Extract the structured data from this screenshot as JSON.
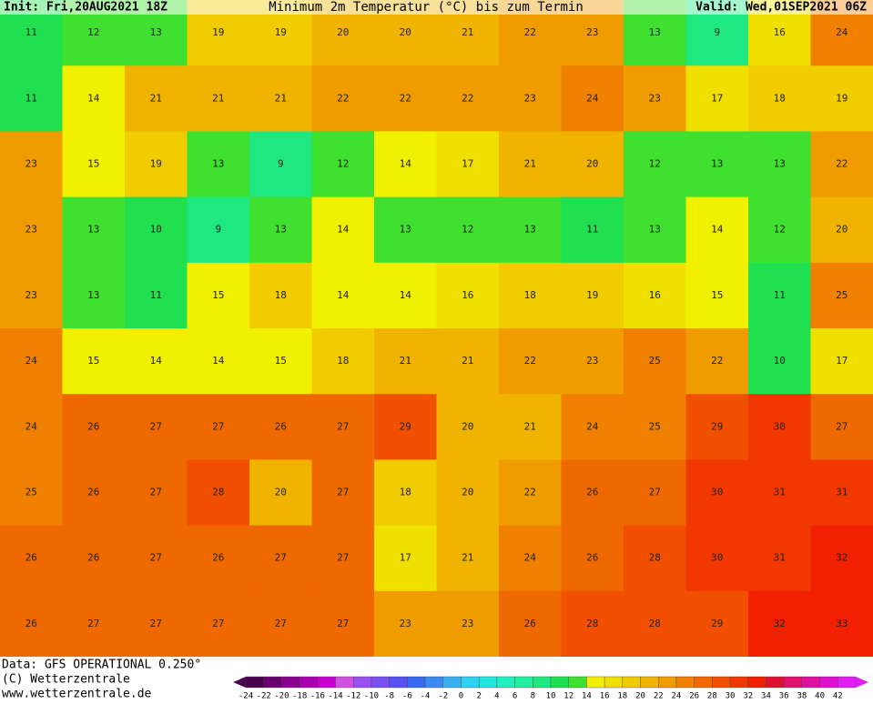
{
  "header": {
    "init": "Init: Fri,20AUG2021 18Z",
    "title": "Minimum 2m Temperatur (°C) bis zum Termin",
    "valid": "Valid: Wed,01SEP2021 06Z"
  },
  "footer": {
    "source": "Data: GFS OPERATIONAL 0.250°",
    "copyright": "(C) Wetterzentrale",
    "url": "www.wetterzentrale.de"
  },
  "map": {
    "grid": [
      [
        11,
        12,
        13,
        19,
        19,
        20,
        20,
        21,
        22,
        23,
        13,
        9,
        16,
        24
      ],
      [
        11,
        14,
        21,
        21,
        21,
        22,
        22,
        22,
        23,
        24,
        23,
        17,
        18,
        19
      ],
      [
        23,
        15,
        19,
        13,
        9,
        12,
        14,
        17,
        21,
        20,
        12,
        13,
        13,
        22
      ],
      [
        23,
        13,
        10,
        9,
        13,
        14,
        13,
        12,
        13,
        11,
        13,
        14,
        12,
        20
      ],
      [
        23,
        13,
        11,
        15,
        18,
        14,
        14,
        16,
        18,
        19,
        16,
        15,
        11,
        25
      ],
      [
        24,
        15,
        14,
        14,
        15,
        18,
        21,
        21,
        22,
        23,
        25,
        22,
        10,
        17
      ],
      [
        24,
        26,
        27,
        27,
        26,
        27,
        29,
        20,
        21,
        24,
        25,
        29,
        30,
        27
      ],
      [
        25,
        26,
        27,
        28,
        20,
        27,
        18,
        20,
        22,
        26,
        27,
        30,
        31,
        31
      ],
      [
        26,
        26,
        27,
        26,
        27,
        27,
        17,
        21,
        24,
        26,
        28,
        30,
        31,
        32
      ],
      [
        26,
        27,
        27,
        27,
        27,
        27,
        23,
        23,
        26,
        28,
        28,
        29,
        32,
        33
      ]
    ]
  },
  "legend": {
    "ticks": [
      -24,
      -22,
      -20,
      -18,
      -16,
      -14,
      -12,
      -10,
      -8,
      -6,
      -4,
      -2,
      0,
      2,
      4,
      6,
      8,
      10,
      12,
      14,
      16,
      18,
      20,
      22,
      24,
      26,
      28,
      30,
      32,
      34,
      36,
      38,
      40,
      42
    ],
    "colors": [
      "#4b0050",
      "#6a0070",
      "#8a008f",
      "#a800b0",
      "#c800d0",
      "#d24fe0",
      "#9a4ff0",
      "#7a50f0",
      "#5a50f0",
      "#3a6af0",
      "#3a8cf0",
      "#3ab0f0",
      "#30d0f0",
      "#20e8e0",
      "#20f0c0",
      "#20f0a0",
      "#20e880",
      "#20e050",
      "#40e030",
      "#f0f000",
      "#f0e000",
      "#f0cc00",
      "#f0b400",
      "#f09c00",
      "#f08000",
      "#f06800",
      "#f05000",
      "#f03800",
      "#f02000",
      "#e01030",
      "#e01070",
      "#e010a0",
      "#e010d0",
      "#e020f0"
    ]
  }
}
